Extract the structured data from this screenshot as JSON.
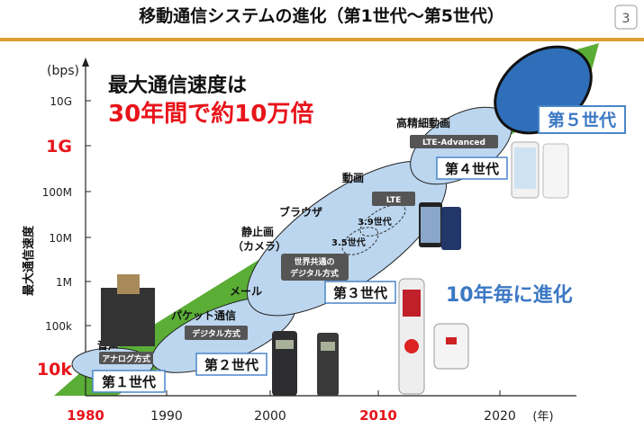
{
  "title": "移動通信システムの進化（第1世代〜第5世代）",
  "page_number": "3",
  "headline": {
    "line1": "最大通信速度は",
    "line2": "30年間で約10万倍"
  },
  "tagline": "10年毎に進化",
  "y_axis": {
    "unit": "(bps)",
    "title": "最大通信速度",
    "ticks": [
      "10G",
      "1G",
      "100M",
      "10M",
      "1M",
      "100k",
      "10k"
    ],
    "highlighted": [
      "1G",
      "10k"
    ]
  },
  "x_axis": {
    "unit": "(年)",
    "ticks": [
      "1980",
      "1990",
      "2000",
      "2010",
      "2020"
    ],
    "highlighted": [
      "1980",
      "2010"
    ]
  },
  "generations": [
    {
      "label": "第１世代",
      "tech": "アナログ方式",
      "service": "音声"
    },
    {
      "label": "第２世代",
      "tech": "デジタル方式",
      "service": "パケット通信"
    },
    {
      "label": "第３世代",
      "tech_line1": "世界共通の",
      "tech_line2": "デジタル方式",
      "service": "メール",
      "sub": [
        "3.5世代",
        "3.9世代"
      ]
    },
    {
      "label": "第４世代",
      "tech": "LTE-Advanced",
      "service": "高精細動画"
    },
    {
      "label": "第５世代"
    }
  ],
  "services_extra": {
    "still_image": "静止画",
    "camera": "（カメラ）",
    "browser": "ブラウザ",
    "video": "動画",
    "lte": "LTE"
  },
  "colors": {
    "red": "#e8141b",
    "blue_text": "#3b78c4",
    "green_arrow": "#5aad35",
    "ellipse_light": "#bcd6ef",
    "ellipse_5g": "#2f6fba",
    "label_box": "#555555",
    "rule": "#d9a030"
  }
}
